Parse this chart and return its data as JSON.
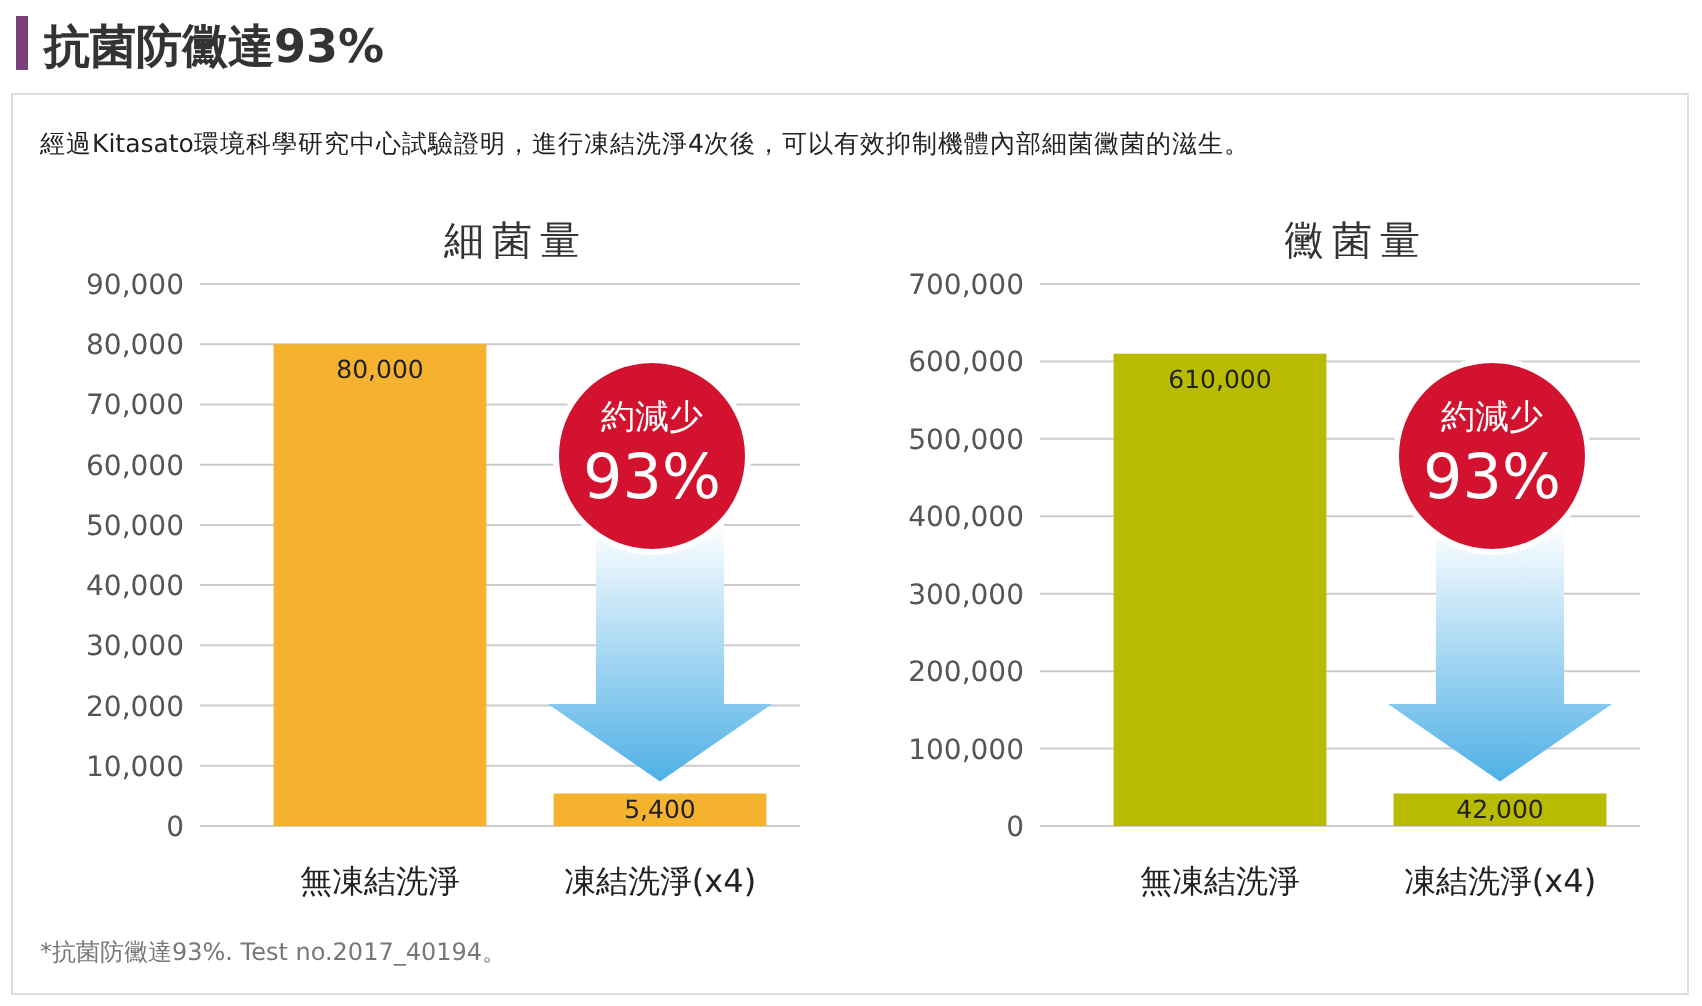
{
  "chart_data": [
    {
      "type": "other",
      "title": "抗菌防黴達93%",
      "subtitle": "經過Kitasato環境科學研究中心試驗證明，進行凍結洗淨4次後，可以有效抑制機體內部細菌黴菌的滋生。",
      "annotations": [
        "*抗菌防黴達93%. Test no.2017_40194。"
      ]
    },
    {
      "type": "bar",
      "title": "細菌量",
      "categories": [
        "無凍結洗淨",
        "凍結洗淨(x4)"
      ],
      "values": [
        80000,
        5400
      ],
      "value_labels": [
        "80,000",
        "5,400"
      ],
      "color": "#f5b22e",
      "ylim": [
        0,
        90000
      ],
      "yticks": [
        0,
        {
          "value": 10000,
          "label": "10,000"
        },
        {
          "value": 20000,
          "label": "20,000"
        },
        {
          "value": 30000,
          "label": "30,000"
        },
        {
          "value": 40000,
          "label": "40,000"
        },
        {
          "value": 50000,
          "label": "50,000"
        },
        {
          "value": 60000,
          "label": "60,000"
        },
        {
          "value": 70000,
          "label": "70,000"
        },
        {
          "value": 80000,
          "label": "80,000"
        },
        {
          "value": 90000,
          "label": "90,000"
        }
      ],
      "grid": "y",
      "annotations": [
        "約減少",
        "93%"
      ]
    },
    {
      "type": "bar",
      "title": "黴菌量",
      "categories": [
        "無凍結洗淨",
        "凍結洗淨(x4)"
      ],
      "values": [
        610000,
        42000
      ],
      "value_labels": [
        "610,000",
        "42,000"
      ],
      "color": "#b8bb00",
      "ylim": [
        0,
        700000
      ],
      "yticks": [
        0,
        {
          "value": 100000,
          "label": "100,000"
        },
        {
          "value": 200000,
          "label": "200,000"
        },
        {
          "value": 300000,
          "label": "300,000"
        },
        {
          "value": 400000,
          "label": "400,000"
        },
        {
          "value": 500000,
          "label": "500,000"
        },
        {
          "value": 600000,
          "label": "600,000"
        },
        {
          "value": 700000,
          "label": "700,000"
        }
      ],
      "grid": "y",
      "annotations": [
        "約減少",
        "93%"
      ]
    }
  ]
}
